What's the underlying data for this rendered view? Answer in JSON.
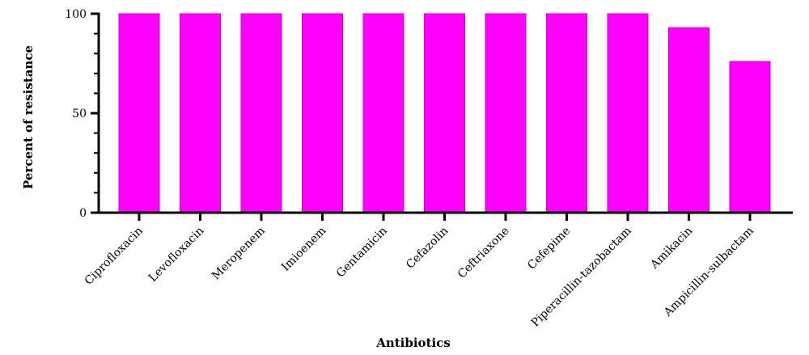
{
  "chart_data": {
    "type": "bar",
    "title": "",
    "xlabel": "Antibiotics",
    "ylabel": "Percent of resistance",
    "categories": [
      "Ciprofloxacin",
      "Levofloxacin",
      "Meropenem",
      "Imioenem",
      "Gentamicin",
      "Cefazolin",
      "Ceftriaxone",
      "Cefepime",
      "Piperacillin-tazobactam",
      "Amikacin",
      "Ampicillin-sulbactam"
    ],
    "values": [
      100,
      100,
      100,
      100,
      100,
      100,
      100,
      100,
      100,
      93,
      76
    ],
    "ylim": [
      0,
      100
    ],
    "yticks": [
      "0",
      "50",
      "100"
    ],
    "bar_color": "#ff00ff",
    "bar_edge_color": "#cc00cc",
    "axis_color": "#000000",
    "grid": false,
    "legend": "none"
  }
}
